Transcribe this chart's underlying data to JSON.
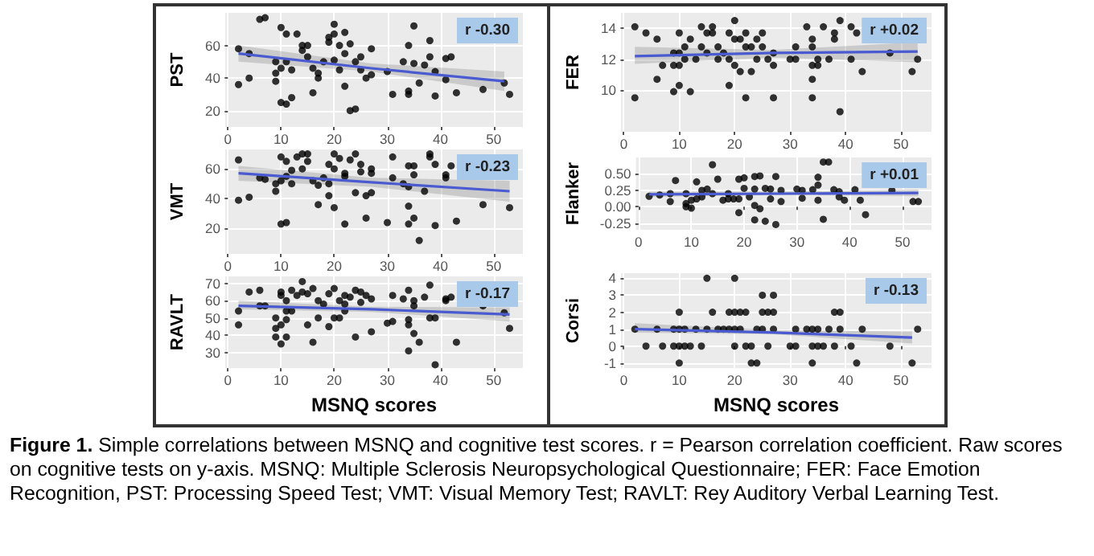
{
  "chart_data": [
    {
      "type": "scatter",
      "ylabel": "PST",
      "annotations": [
        "r -0.30"
      ],
      "xlim": [
        -0.5,
        55.5
      ],
      "xticks": [
        0,
        10,
        20,
        30,
        40,
        50
      ],
      "ylim": [
        10,
        80
      ],
      "yticks": [
        20,
        40,
        60
      ],
      "grid": true,
      "series": [
        {
          "type": "scatter",
          "marker": "circle",
          "color": "#000000",
          "x": [
            2,
            2,
            4,
            4,
            6,
            7,
            9,
            9,
            9,
            10,
            10,
            11,
            11,
            10,
            11,
            12,
            12,
            13,
            14,
            14,
            15,
            15,
            16,
            16,
            17,
            17,
            18,
            19,
            19,
            20,
            20,
            20,
            21,
            21,
            22,
            22,
            22,
            23,
            23,
            24,
            24,
            25,
            25,
            26,
            27,
            27,
            30,
            31,
            33,
            34,
            34,
            34,
            35,
            35,
            36,
            37,
            38,
            38,
            39,
            39,
            41,
            41,
            42,
            43,
            48,
            52,
            53
          ],
          "values": [
            58,
            36,
            40,
            55,
            76,
            77,
            38,
            43,
            50,
            25,
            71,
            24,
            67,
            46,
            50,
            45,
            28,
            67,
            57,
            60,
            60,
            53,
            31,
            46,
            40,
            43,
            50,
            65,
            62,
            73,
            67,
            51,
            60,
            45,
            68,
            55,
            35,
            20,
            61,
            21,
            50,
            53,
            45,
            40,
            58,
            42,
            44,
            30,
            50,
            60,
            30,
            32,
            72,
            49,
            37,
            48,
            63,
            53,
            29,
            44,
            52,
            39,
            53,
            31,
            33,
            37,
            30
          ]
        },
        {
          "type": "line",
          "marker": "none",
          "color": "#4a5ad0",
          "x": [
            2,
            27,
            52
          ],
          "values": [
            55,
            46,
            38
          ],
          "lower": [
            50,
            44,
            32
          ],
          "upper": [
            60,
            49,
            44
          ]
        }
      ]
    },
    {
      "type": "scatter",
      "ylabel": "VMT",
      "annotations": [
        "r -0.23"
      ],
      "xlim": [
        -0.5,
        55.5
      ],
      "xticks": [
        0,
        10,
        20,
        30,
        40,
        50
      ],
      "ylim": [
        3,
        73
      ],
      "yticks": [
        20,
        40,
        60
      ],
      "grid": true,
      "series": [
        {
          "type": "scatter",
          "marker": "circle",
          "color": "#000000",
          "x": [
            2,
            2,
            4,
            6,
            7,
            9,
            9,
            10,
            10,
            10,
            11,
            11,
            11,
            12,
            12,
            13,
            14,
            14,
            15,
            15,
            16,
            17,
            17,
            18,
            19,
            19,
            19,
            20,
            20,
            20,
            21,
            22,
            22,
            22,
            23,
            24,
            24,
            25,
            25,
            26,
            26,
            27,
            27,
            27,
            30,
            31,
            31,
            33,
            34,
            34,
            34,
            34,
            35,
            35,
            35,
            36,
            37,
            38,
            38,
            39,
            39,
            41,
            41,
            42,
            43,
            48,
            53
          ],
          "values": [
            66,
            39,
            41,
            54,
            53,
            45,
            50,
            23,
            68,
            52,
            24,
            65,
            55,
            50,
            59,
            68,
            70,
            60,
            70,
            65,
            52,
            49,
            36,
            54,
            42,
            63,
            50,
            70,
            60,
            34,
            67,
            23,
            57,
            55,
            66,
            70,
            44,
            63,
            58,
            42,
            27,
            57,
            44,
            60,
            24,
            68,
            54,
            50,
            62,
            48,
            35,
            23,
            62,
            56,
            27,
            12,
            45,
            70,
            68,
            22,
            63,
            56,
            54,
            62,
            25,
            36,
            34
          ]
        },
        {
          "type": "line",
          "marker": "none",
          "color": "#4a5ad0",
          "x": [
            2,
            27,
            53
          ],
          "values": [
            57,
            51,
            45
          ],
          "lower": [
            52,
            48,
            38
          ],
          "upper": [
            62,
            54,
            52
          ]
        }
      ]
    },
    {
      "type": "scatter",
      "ylabel": "RAVLT",
      "xlabel": "MSNQ scores",
      "annotations": [
        "r -0.17"
      ],
      "xlim": [
        -0.5,
        55.5
      ],
      "xticks": [
        0,
        10,
        20,
        30,
        40,
        50
      ],
      "ylim": [
        21,
        74
      ],
      "yticks": [
        30,
        40,
        50,
        60,
        70
      ],
      "grid": true,
      "series": [
        {
          "type": "scatter",
          "marker": "circle",
          "color": "#000000",
          "x": [
            2,
            2,
            4,
            6,
            6,
            7,
            9,
            9,
            9,
            10,
            10,
            10,
            10,
            11,
            11,
            11,
            11,
            12,
            12,
            13,
            14,
            14,
            15,
            15,
            16,
            16,
            17,
            17,
            18,
            19,
            19,
            20,
            20,
            21,
            21,
            22,
            22,
            22,
            23,
            24,
            24,
            25,
            25,
            26,
            27,
            27,
            30,
            31,
            31,
            33,
            34,
            34,
            34,
            34,
            35,
            35,
            35,
            36,
            37,
            38,
            38,
            39,
            39,
            41,
            41,
            42,
            43,
            48,
            52,
            53
          ],
          "values": [
            54,
            46,
            65,
            66,
            57,
            57,
            50,
            44,
            39,
            65,
            46,
            35,
            63,
            60,
            49,
            39,
            54,
            66,
            54,
            63,
            71,
            65,
            64,
            46,
            67,
            36,
            50,
            60,
            58,
            64,
            45,
            67,
            50,
            60,
            50,
            63,
            58,
            54,
            62,
            66,
            39,
            65,
            59,
            63,
            61,
            42,
            47,
            63,
            48,
            61,
            66,
            49,
            46,
            31,
            60,
            57,
            41,
            36,
            62,
            69,
            50,
            50,
            23,
            60,
            61,
            62,
            36,
            57,
            53,
            44
          ]
        },
        {
          "type": "line",
          "marker": "none",
          "color": "#4a5ad0",
          "x": [
            2,
            27,
            53
          ],
          "values": [
            57,
            55,
            52
          ],
          "lower": [
            55,
            53.5,
            48
          ],
          "upper": [
            60,
            56.5,
            56
          ]
        }
      ]
    },
    {
      "type": "scatter",
      "ylabel": "FER",
      "annotations": [
        "r +0.02"
      ],
      "xlim": [
        -0.5,
        55.5
      ],
      "xticks": [
        0,
        10,
        20,
        30,
        40,
        50
      ],
      "ylim": [
        7.3,
        15
      ],
      "yticks": [
        10,
        12,
        14
      ],
      "grid": true,
      "series": [
        {
          "type": "scatter",
          "marker": "circle",
          "color": "#000000",
          "x": [
            2,
            2,
            4,
            6,
            6,
            7,
            9,
            9,
            9,
            10,
            10,
            10,
            10,
            11,
            11,
            12,
            12,
            13,
            14,
            14,
            15,
            15,
            16,
            16,
            17,
            17,
            18,
            19,
            19,
            19,
            20,
            20,
            20,
            21,
            21,
            22,
            22,
            22,
            23,
            23,
            24,
            24,
            25,
            25,
            26,
            27,
            27,
            27,
            30,
            31,
            31,
            33,
            34,
            34,
            34,
            34,
            34,
            35,
            35,
            36,
            37,
            38,
            38,
            39,
            39,
            41,
            41,
            42,
            43,
            48,
            52,
            53
          ],
          "values": [
            14.1,
            9.5,
            13.7,
            13.3,
            10.7,
            11.6,
            12.4,
            11.6,
            9.9,
            13.7,
            11.6,
            10.3,
            12.4,
            12.0,
            12.8,
            13.3,
            9.9,
            12.0,
            14.1,
            12.8,
            13.7,
            12.4,
            14.1,
            13.7,
            12.8,
            12.0,
            12.4,
            13.7,
            10.3,
            12.0,
            14.5,
            13.3,
            11.6,
            13.3,
            11.2,
            13.7,
            12.8,
            9.5,
            12.8,
            11.2,
            13.3,
            12.0,
            13.7,
            12.8,
            12.0,
            12.4,
            11.6,
            9.5,
            12.0,
            12.8,
            12.0,
            14.1,
            13.3,
            12.8,
            11.6,
            10.7,
            9.5,
            12.0,
            11.6,
            14.1,
            12.0,
            13.7,
            13.3,
            14.5,
            8.6,
            14.1,
            12.0,
            13.7,
            11.2,
            12.4,
            11.2,
            12.0
          ]
        },
        {
          "type": "line",
          "marker": "none",
          "color": "#4a5ad0",
          "x": [
            2,
            27,
            53
          ],
          "values": [
            12.2,
            12.4,
            12.5
          ],
          "lower": [
            11.7,
            12.1,
            11.8
          ],
          "upper": [
            12.8,
            12.6,
            13.1
          ]
        }
      ]
    },
    {
      "type": "scatter",
      "ylabel": "Flanker",
      "annotations": [
        "r +0.01"
      ],
      "xlim": [
        -0.5,
        55.5
      ],
      "xticks": [
        0,
        10,
        20,
        30,
        40,
        50
      ],
      "ylim": [
        -0.35,
        0.75
      ],
      "yticks": [
        {
          "value": -0.25,
          "label": "-0.25"
        },
        {
          "value": 0,
          "label": "0.00"
        },
        {
          "value": 0.25,
          "label": "0.25"
        },
        {
          "value": 0.5,
          "label": "0.50"
        }
      ],
      "grid": true,
      "series": [
        {
          "type": "scatter",
          "marker": "circle",
          "color": "#000000",
          "x": [
            2,
            4,
            6,
            6,
            7,
            9,
            9,
            9,
            10,
            10,
            11,
            11,
            12,
            12,
            13,
            14,
            14,
            15,
            16,
            17,
            17,
            18,
            19,
            19,
            19,
            20,
            20,
            21,
            22,
            22,
            22,
            22,
            23,
            23,
            24,
            24,
            25,
            25,
            26,
            26,
            27,
            27,
            30,
            31,
            31,
            33,
            34,
            34,
            34,
            35,
            35,
            36,
            37,
            38,
            38,
            39,
            41,
            42,
            43,
            48,
            52,
            53
          ],
          "values": [
            0.16,
            0.18,
            0.08,
            0.2,
            0.4,
            0.05,
            0,
            0.2,
            -0.02,
            0.1,
            0.38,
            0.12,
            0.15,
            0.25,
            0.27,
            0.64,
            0.2,
            0.42,
            0.1,
            0.12,
            0.2,
            0.12,
            0.42,
            -0.09,
            0.12,
            0.44,
            0.28,
            0.15,
            0.46,
            0.27,
            -0.2,
            0.02,
            0.47,
            -0.03,
            0.28,
            -0.22,
            0.27,
            0.12,
            0.46,
            -0.27,
            0.25,
            0.08,
            0.27,
            0.25,
            0.13,
            0.26,
            0.45,
            0.33,
            0.1,
            0.68,
            -0.19,
            0.68,
            0.26,
            0.23,
            0.15,
            0.1,
            0.26,
            0.1,
            -0.12,
            0.25,
            0.08,
            0.08
          ]
        },
        {
          "type": "line",
          "marker": "none",
          "color": "#4a5ad0",
          "x": [
            2,
            27,
            53
          ],
          "values": [
            0.19,
            0.2,
            0.21
          ],
          "lower": [
            0.15,
            0.18,
            0.16
          ],
          "upper": [
            0.23,
            0.23,
            0.26
          ]
        }
      ]
    },
    {
      "type": "scatter",
      "ylabel": "Corsi",
      "xlabel": "MSNQ scores",
      "annotations": [
        "r -0.13"
      ],
      "xlim": [
        -0.5,
        55.5
      ],
      "xticks": [
        0,
        10,
        20,
        30,
        40,
        50
      ],
      "ylim": [
        -1.3,
        4.3
      ],
      "yticks": [
        -1,
        0,
        1,
        2,
        3,
        4
      ],
      "grid": true,
      "series": [
        {
          "type": "scatter",
          "marker": "circle",
          "color": "#000000",
          "x": [
            2,
            4,
            6,
            7,
            9,
            9,
            10,
            10,
            10,
            10,
            11,
            11,
            12,
            13,
            14,
            15,
            15,
            16,
            17,
            18,
            19,
            19,
            20,
            20,
            20,
            20,
            21,
            21,
            22,
            22,
            23,
            23,
            24,
            24,
            25,
            25,
            25,
            26,
            26,
            27,
            27,
            27,
            30,
            31,
            31,
            33,
            34,
            34,
            34,
            35,
            35,
            36,
            37,
            38,
            38,
            39,
            39,
            41,
            42,
            43,
            48,
            52,
            53
          ],
          "values": [
            1,
            0,
            1,
            0,
            1,
            0,
            2,
            0,
            -1,
            1,
            0,
            1,
            0,
            1,
            0,
            4,
            1,
            2,
            1,
            1,
            2,
            1,
            4,
            2,
            0,
            1,
            2,
            1,
            2,
            0,
            0,
            -1,
            -1,
            1,
            3,
            2,
            1,
            2,
            0,
            3,
            2,
            1,
            0,
            1,
            0,
            1,
            1,
            0,
            -1,
            1,
            0,
            0,
            1,
            2,
            0,
            2,
            1,
            0,
            -1,
            1,
            0,
            -1,
            1
          ]
        },
        {
          "type": "line",
          "marker": "none",
          "color": "#4a5ad0",
          "x": [
            2,
            27,
            52
          ],
          "values": [
            1.0,
            0.8,
            0.5
          ],
          "lower": [
            0.8,
            0.7,
            0.15
          ],
          "upper": [
            1.35,
            0.95,
            0.85
          ]
        }
      ]
    },
    {
      "type": "other",
      "annotations": [
        "Figure 1.",
        "Simple correlations between MSNQ and cognitive test scores. r = Pearson correlation coefficient. Raw scores on cognitive tests on y-axis. MSNQ: Multiple Sclerosis Neuropsychological Questionnaire; FER: Face Emotion Recognition, PST: Processing Speed Test; VMT: Visual Memory Test; RAVLT: Rey Auditory Verbal Learning Test."
      ]
    }
  ]
}
